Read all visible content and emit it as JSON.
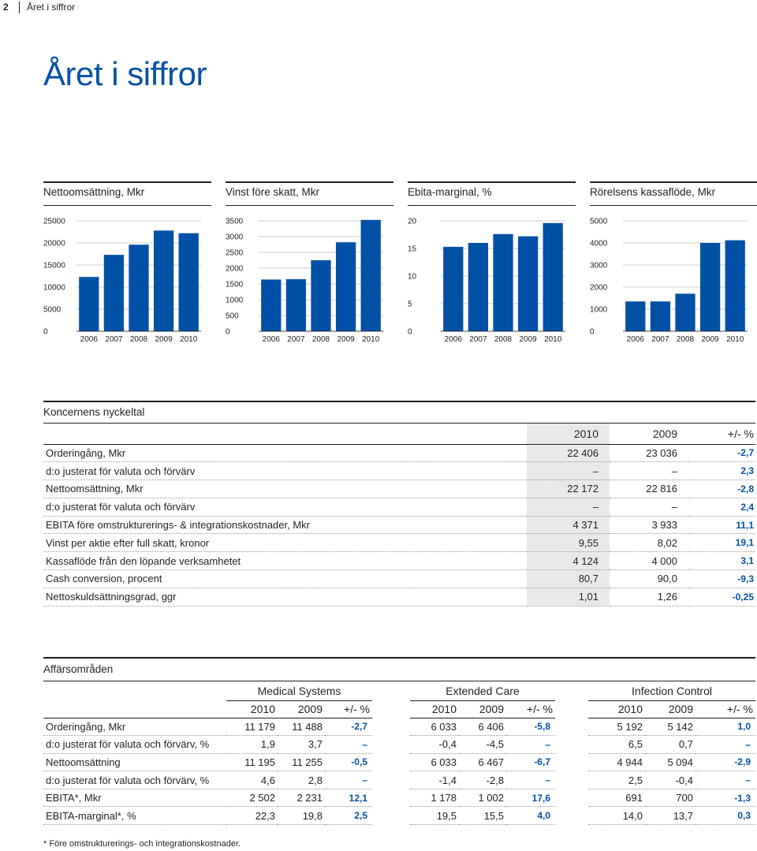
{
  "header": {
    "page_number": "2",
    "section": "Året i siffror"
  },
  "title": "Året i siffror",
  "chart_data": [
    {
      "type": "bar",
      "title": "Nettoomsättning, Mkr",
      "categories": [
        "2006",
        "2007",
        "2008",
        "2009",
        "2010"
      ],
      "values": [
        12300,
        17300,
        19600,
        22800,
        22200
      ],
      "ylim": [
        0,
        25000
      ],
      "yticks": [
        "0",
        "5000",
        "10000",
        "15000",
        "20000",
        "25000"
      ],
      "color": "#0051a5"
    },
    {
      "type": "bar",
      "title": "Vinst före skatt, Mkr",
      "categories": [
        "2006",
        "2007",
        "2008",
        "2009",
        "2010"
      ],
      "values": [
        1640,
        1650,
        2250,
        2820,
        3530
      ],
      "ylim": [
        0,
        3500
      ],
      "yticks": [
        "0",
        "500",
        "1000",
        "1500",
        "2000",
        "2500",
        "3000",
        "3500"
      ],
      "color": "#0051a5"
    },
    {
      "type": "bar",
      "title": "Ebita-marginal, %",
      "categories": [
        "2006",
        "2007",
        "2008",
        "2009",
        "2010"
      ],
      "values": [
        15.3,
        16.0,
        17.6,
        17.2,
        19.6
      ],
      "ylim": [
        0,
        20
      ],
      "yticks": [
        "0",
        "5",
        "10",
        "15",
        "20"
      ],
      "color": "#0051a5"
    },
    {
      "type": "bar",
      "title": "Rörelsens kassaflöde, Mkr",
      "categories": [
        "2006",
        "2007",
        "2008",
        "2009",
        "2010"
      ],
      "values": [
        1350,
        1350,
        1700,
        4000,
        4120
      ],
      "ylim": [
        0,
        5000
      ],
      "yticks": [
        "0",
        "1000",
        "2000",
        "3000",
        "4000",
        "5000"
      ],
      "color": "#0051a5"
    }
  ],
  "nyckeltal": {
    "title": "Koncernens nyckeltal",
    "headers": [
      "2010",
      "2009",
      "+/- %"
    ],
    "rows": [
      {
        "label": "Orderingång, Mkr",
        "v2010": "22 406",
        "v2009": "23 036",
        "delta": "-2,7"
      },
      {
        "label": "d:o justerat för valuta och förvärv",
        "v2010": "–",
        "v2009": "–",
        "delta": "2,3"
      },
      {
        "label": "Nettoomsättning, Mkr",
        "v2010": "22 172",
        "v2009": "22 816",
        "delta": "-2,8"
      },
      {
        "label": "d:o justerat för valuta och förvärv",
        "v2010": "–",
        "v2009": "–",
        "delta": "2,4"
      },
      {
        "label": "EBITA före omstrukturerings- & integrationskostnader, Mkr",
        "v2010": "4 371",
        "v2009": "3 933",
        "delta": "11,1"
      },
      {
        "label": "Vinst per aktie efter full skatt, kronor",
        "v2010": "9,55",
        "v2009": "8,02",
        "delta": "19,1"
      },
      {
        "label": "Kassaflöde från den löpande verksamhetet",
        "v2010": "4 124",
        "v2009": "4 000",
        "delta": "3,1"
      },
      {
        "label": "Cash conversion, procent",
        "v2010": "80,7",
        "v2009": "90,0",
        "delta": "-9,3"
      },
      {
        "label": "Nettoskuldsättningsgrad, ggr",
        "v2010": "1,01",
        "v2009": "1,26",
        "delta": "-0,25"
      }
    ]
  },
  "affarsomraden": {
    "title": "Affärsområden",
    "groups": [
      "Medical Systems",
      "Extended Care",
      "Infection Control"
    ],
    "headers": [
      "2010",
      "2009",
      "+/- %"
    ],
    "rows": [
      {
        "label": "Orderingång, Mkr",
        "cells": [
          "11 179",
          "11 488",
          "-2,7",
          "6 033",
          "6 406",
          "-5,8",
          "5 192",
          "5 142",
          "1,0"
        ]
      },
      {
        "label": "d:o justerat för valuta och förvärv, %",
        "cells": [
          "1,9",
          "3,7",
          "–",
          "-0,4",
          "-4,5",
          "–",
          "6,5",
          "0,7",
          "–"
        ]
      },
      {
        "label": "Nettoomsättning",
        "cells": [
          "11 195",
          "11 255",
          "-0,5",
          "6 033",
          "6 467",
          "-6,7",
          "4 944",
          "5 094",
          "-2,9"
        ]
      },
      {
        "label": "d:o justerat för valuta och förvärv, %",
        "cells": [
          "4,6",
          "2,8",
          "–",
          "-1,4",
          "-2,8",
          "–",
          "2,5",
          "-0,4",
          "–"
        ]
      },
      {
        "label": "EBITA*, Mkr",
        "cells": [
          "2 502",
          "2 231",
          "12,1",
          "1 178",
          "1 002",
          "17,6",
          "691",
          "700",
          "-1,3"
        ]
      },
      {
        "label": "EBITA-marginal*, %",
        "cells": [
          "22,3",
          "19,8",
          "2,5",
          "19,5",
          "15,5",
          "4,0",
          "14,0",
          "13,7",
          "0,3"
        ]
      }
    ]
  },
  "footnote": "*  Före omstrukturerings- och integrationskostnader."
}
